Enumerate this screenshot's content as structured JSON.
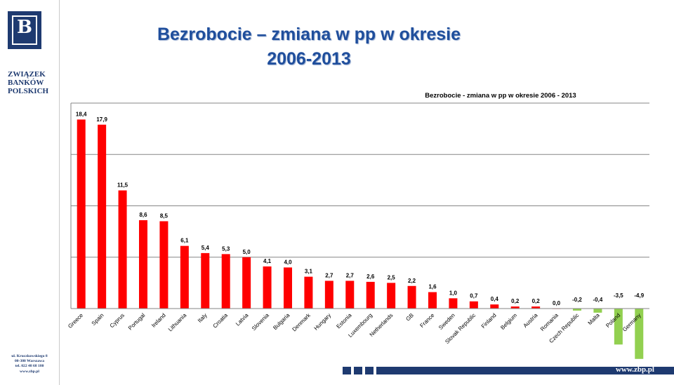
{
  "logo": {
    "letter": "B"
  },
  "sidebar": {
    "org_name": [
      "ZWIĄZEK",
      "BANKÓW",
      "POLSKICH"
    ],
    "address": [
      "ul. Kruczkowskiego 8",
      "00-380 Warszawa",
      "tel. 022 48 68 180",
      "www.zbp.pl"
    ]
  },
  "slide": {
    "title_line1": "Bezrobocie – zmiana w pp w okresie",
    "title_line2": "2006-2013"
  },
  "footer": {
    "url": "www.zbp.pl"
  },
  "colors": {
    "brand": "#1e3a70",
    "title": "#1f4e9c",
    "positive": "#ff0000",
    "negative": "#92d050"
  },
  "chart_data": {
    "type": "bar",
    "title": "Bezrobocie - zmiana w pp w okresie 2006 - 2013",
    "xlabel": "",
    "ylabel": "",
    "ylim": [
      -5,
      20
    ],
    "grid": true,
    "categories": [
      "Greece",
      "Spain",
      "Cyprus",
      "Portugal",
      "Ireland",
      "Lithuania",
      "Italy",
      "Croatia",
      "Latvia",
      "Slovenia",
      "Bulgaria",
      "Denmark",
      "Hungary",
      "Estonia",
      "Luxembourg",
      "Netherlands",
      "GB",
      "France",
      "Sweden",
      "Slovak Republic",
      "Finland",
      "Belgium",
      "Austria",
      "Romania",
      "Czech Republic",
      "Malta",
      "Poland",
      "Germany"
    ],
    "values": [
      18.4,
      17.9,
      11.5,
      8.6,
      8.5,
      6.1,
      5.4,
      5.3,
      5.0,
      4.1,
      4.0,
      3.1,
      2.7,
      2.7,
      2.6,
      2.5,
      2.2,
      1.6,
      1.0,
      0.7,
      0.4,
      0.2,
      0.2,
      0.0,
      -0.2,
      -0.4,
      -3.5,
      -4.9
    ],
    "value_labels": [
      "18,4",
      "17,9",
      "11,5",
      "8,6",
      "8,5",
      "6,1",
      "5,4",
      "5,3",
      "5,0",
      "4,1",
      "4,0",
      "3,1",
      "2,7",
      "2,7",
      "2,6",
      "2,5",
      "2,2",
      "1,6",
      "1,0",
      "0,7",
      "0,4",
      "0,2",
      "0,2",
      "0,0",
      "-0,2",
      "-0,4",
      "-3,5",
      "-4,9"
    ]
  }
}
